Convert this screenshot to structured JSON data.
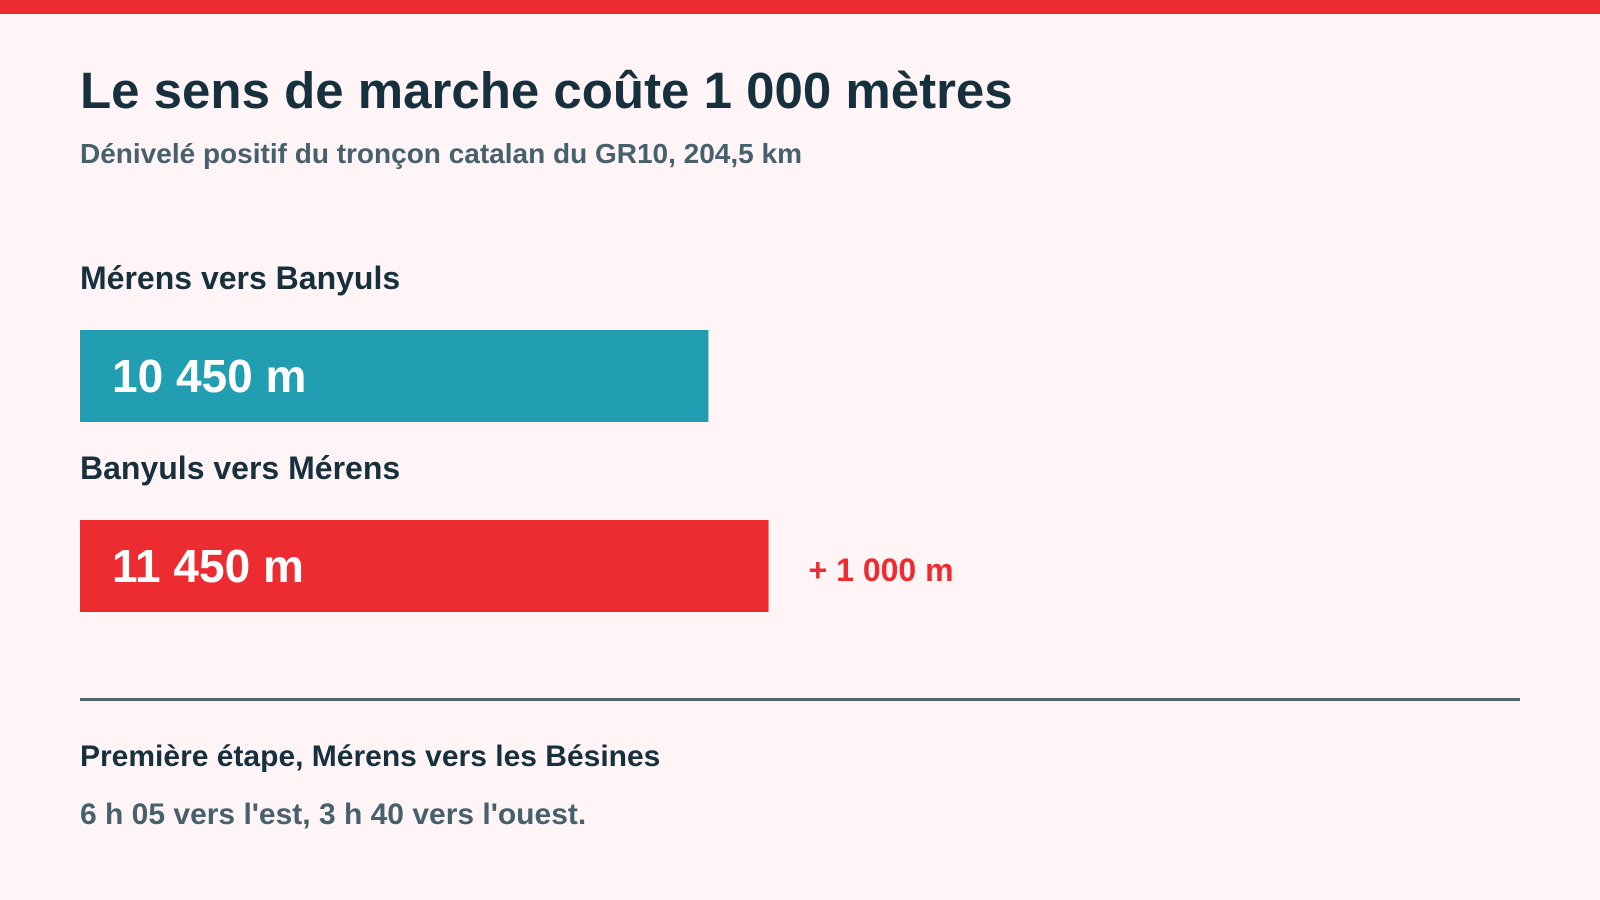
{
  "colors": {
    "background": "#FFF4F6",
    "accent_red": "#EC2C30",
    "accent_teal": "#219EB2",
    "text_dark": "#17303D",
    "text_muted": "#46606C"
  },
  "header": {
    "title": "Le sens de marche coûte 1 000 mètres",
    "subtitle": "Dénivelé positif du tronçon catalan du GR10, 204,5 km"
  },
  "chart_data": {
    "type": "bar",
    "orientation": "horizontal",
    "title": "Le sens de marche coûte 1 000 mètres",
    "subtitle": "Dénivelé positif du tronçon catalan du GR10, 204,5 km",
    "categories": [
      "Mérens vers Banyuls",
      "Banyuls vers Mérens"
    ],
    "values": [
      10450,
      11450
    ],
    "value_labels": [
      "10 450 m",
      "11 450 m"
    ],
    "bar_colors": [
      "#219EB2",
      "#EC2C30"
    ],
    "annotations": [
      {
        "category": "Banyuls vers Mérens",
        "text": "+ 1 000 m",
        "color": "#EC2C30"
      }
    ],
    "xlim": [
      0,
      20000
    ],
    "grid": false,
    "legend": "none"
  },
  "footnote": {
    "title": "Première étape, Mérens vers les Bésines",
    "body": "6 h 05 vers l'est, 3 h 40 vers l'ouest."
  }
}
